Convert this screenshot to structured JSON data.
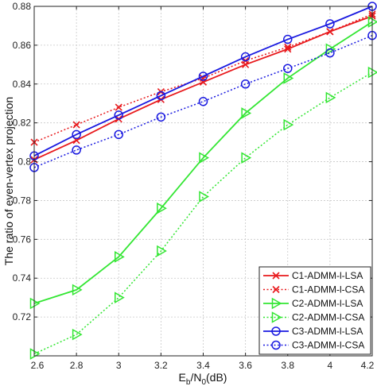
{
  "chart_data": {
    "type": "line",
    "xlabel": {
      "main": "E",
      "sub1": "b",
      "mid": "/N",
      "sub2": "0",
      "tail": "(dB)"
    },
    "ylabel": "The ratio of even-vertex projection",
    "xlim": [
      2.6,
      4.2
    ],
    "ylim": [
      0.7,
      0.88
    ],
    "xticks": [
      2.6,
      2.8,
      3,
      3.2,
      3.4,
      3.6,
      3.8,
      4,
      4.2
    ],
    "xtick_labels": [
      "2.6",
      "2.8",
      "3",
      "3.2",
      "3.4",
      "3.6",
      "3.8",
      "4",
      "4.2"
    ],
    "yticks": [
      0.72,
      0.74,
      0.76,
      0.78,
      0.8,
      0.82,
      0.84,
      0.86,
      0.88
    ],
    "ytick_labels": [
      "0.72",
      "0.74",
      "0.76",
      "0.78",
      "0.8",
      "0.82",
      "0.84",
      "0.86",
      "0.88"
    ],
    "grid": true,
    "legend_position": "bottom-right",
    "x": [
      2.6,
      2.8,
      3.0,
      3.2,
      3.4,
      3.6,
      3.8,
      4.0,
      4.2
    ],
    "series": [
      {
        "name": "C1-ADMM-l-LSA",
        "color": "#e8191c",
        "style": "solid",
        "marker": "x",
        "values": [
          0.801,
          0.811,
          0.822,
          0.832,
          0.841,
          0.85,
          0.858,
          0.867,
          0.875
        ]
      },
      {
        "name": "C1-ADMM-l-CSA",
        "color": "#e8191c",
        "style": "dotted",
        "marker": "x",
        "values": [
          0.81,
          0.819,
          0.828,
          0.836,
          0.843,
          0.852,
          0.859,
          0.867,
          0.876
        ]
      },
      {
        "name": "C2-ADMM-l-LSA",
        "color": "#33e633",
        "style": "solid",
        "marker": "triangle",
        "values": [
          0.727,
          0.734,
          0.751,
          0.776,
          0.802,
          0.825,
          0.843,
          0.858,
          0.872
        ]
      },
      {
        "name": "C2-ADMM-l-CSA",
        "color": "#33e633",
        "style": "dotted",
        "marker": "triangle",
        "values": [
          0.701,
          0.711,
          0.73,
          0.754,
          0.782,
          0.802,
          0.819,
          0.833,
          0.846
        ]
      },
      {
        "name": "C3-ADMM-l-LSA",
        "color": "#1a1ae0",
        "style": "solid",
        "marker": "circle",
        "values": [
          0.803,
          0.814,
          0.824,
          0.834,
          0.844,
          0.854,
          0.863,
          0.871,
          0.88
        ]
      },
      {
        "name": "C3-ADMM-l-CSA",
        "color": "#1a1ae0",
        "style": "dotted",
        "marker": "circle",
        "values": [
          0.797,
          0.806,
          0.814,
          0.823,
          0.831,
          0.84,
          0.848,
          0.856,
          0.865
        ]
      }
    ]
  }
}
